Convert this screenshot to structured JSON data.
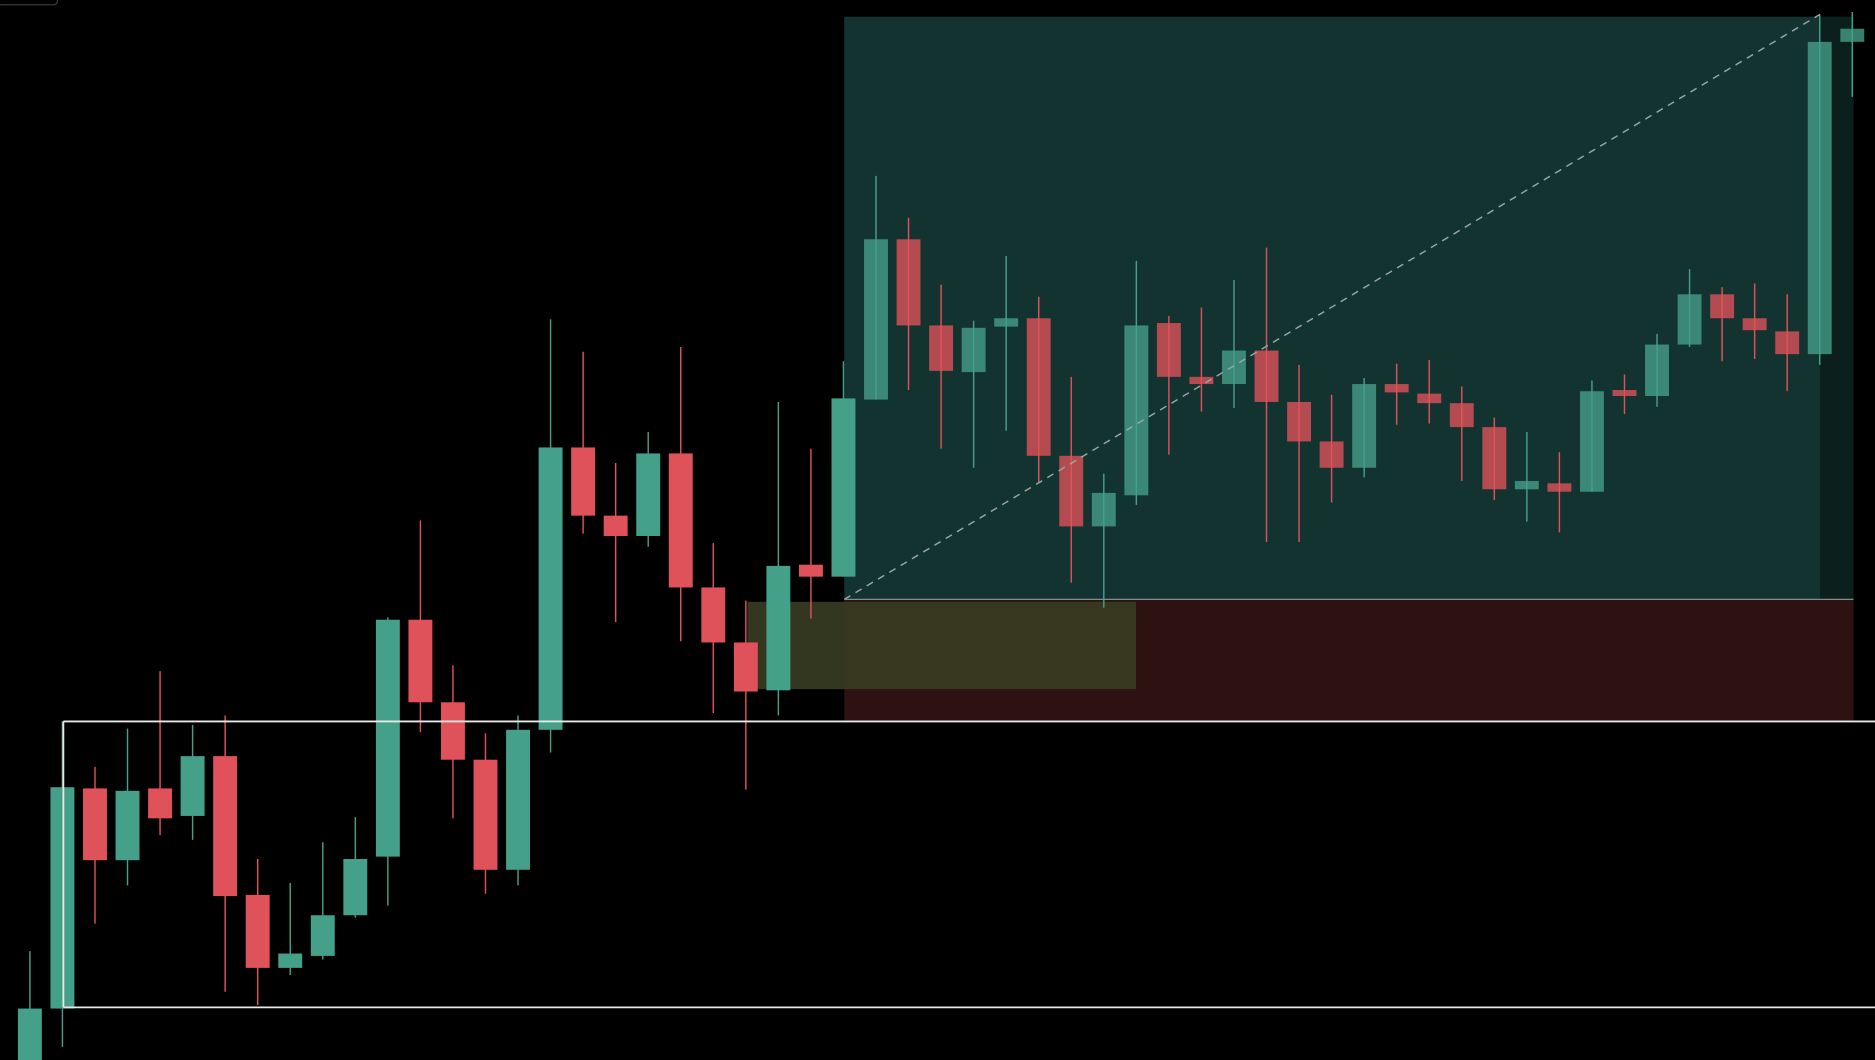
{
  "chart_data": {
    "type": "candlestick",
    "up_color": "#45a089",
    "down_color": "#e0525a",
    "ylim": [
      0,
      886
    ],
    "open": [
      0,
      43,
      227,
      167,
      227,
      204,
      254,
      138,
      77,
      87,
      121,
      170,
      368,
      299,
      251,
      159,
      276,
      512,
      455,
      438,
      507,
      395,
      349,
      309,
      414,
      404,
      552,
      686,
      614,
      575,
      613,
      620,
      505,
      446,
      472,
      616,
      571,
      565,
      593,
      550,
      517,
      495,
      565,
      557,
      549,
      529,
      477,
      482,
      475,
      560,
      555,
      598,
      640,
      620,
      609,
      590,
      851
    ],
    "high": [
      91,
      283,
      245,
      277,
      325,
      280,
      288,
      168,
      148,
      182,
      203,
      370,
      451,
      330,
      273,
      288,
      619,
      592,
      499,
      525,
      596,
      432,
      384,
      550,
      511,
      584,
      739,
      704,
      648,
      618,
      672,
      638,
      571,
      490,
      668,
      622,
      629,
      652,
      679,
      581,
      556,
      570,
      582,
      585,
      563,
      537,
      525,
      508,
      568,
      573,
      607,
      661,
      646,
      649,
      640,
      874,
      876
    ],
    "low": [
      0,
      11,
      114,
      146,
      188,
      184,
      57,
      46,
      71,
      84,
      119,
      129,
      274,
      202,
      139,
      146,
      257,
      440,
      366,
      429,
      350,
      290,
      226,
      288,
      369,
      404,
      552,
      560,
      511,
      495,
      526,
      483,
      399,
      378,
      464,
      506,
      542,
      545,
      433,
      433,
      466,
      487,
      531,
      532,
      484,
      468,
      450,
      441,
      475,
      540,
      546,
      596,
      584,
      586,
      559,
      581,
      805
    ],
    "close": [
      43,
      228,
      167,
      225,
      202,
      254,
      137,
      77,
      89,
      121,
      168,
      368,
      299,
      251,
      159,
      276,
      512,
      455,
      438,
      507,
      395,
      349,
      308,
      413,
      404,
      553,
      686,
      614,
      576,
      612,
      620,
      505,
      446,
      474,
      614,
      571,
      565,
      593,
      550,
      517,
      495,
      565,
      558,
      549,
      529,
      477,
      484,
      475,
      559,
      555,
      598,
      640,
      620,
      610,
      590,
      851,
      862
    ]
  }
}
